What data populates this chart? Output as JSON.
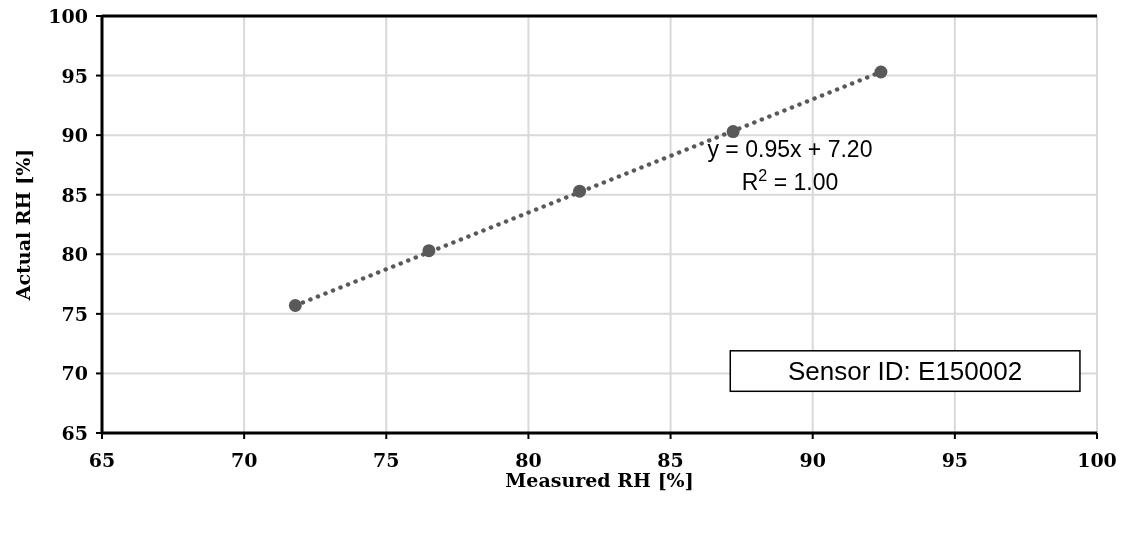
{
  "chart_data": {
    "type": "scatter",
    "xlabel": "Measured RH [%]",
    "ylabel": "Actual RH [%]",
    "xlim": [
      65,
      100
    ],
    "xticks": [
      65,
      70,
      75,
      80,
      85,
      90,
      95,
      100
    ],
    "ylim": [
      65,
      100
    ],
    "yticks": [
      65,
      70,
      75,
      80,
      85,
      90,
      95,
      100
    ],
    "grid": true,
    "series": [
      {
        "color": "#595959",
        "x": [
          71.8,
          76.5,
          81.8,
          87.2,
          92.4
        ],
        "values": [
          75.7,
          80.3,
          85.3,
          90.3,
          95.3
        ],
        "marker": "circle"
      },
      {
        "type": "line",
        "color": "#595959",
        "x": [
          71.8,
          92.4
        ],
        "values": [
          75.7,
          95.3
        ],
        "line_style": "dotted",
        "marker": "none"
      }
    ],
    "annotations": [
      "y = 0.95x + 7.20\nR$^{2}$ = 1.00",
      "Sensor ID: E150002"
    ]
  }
}
